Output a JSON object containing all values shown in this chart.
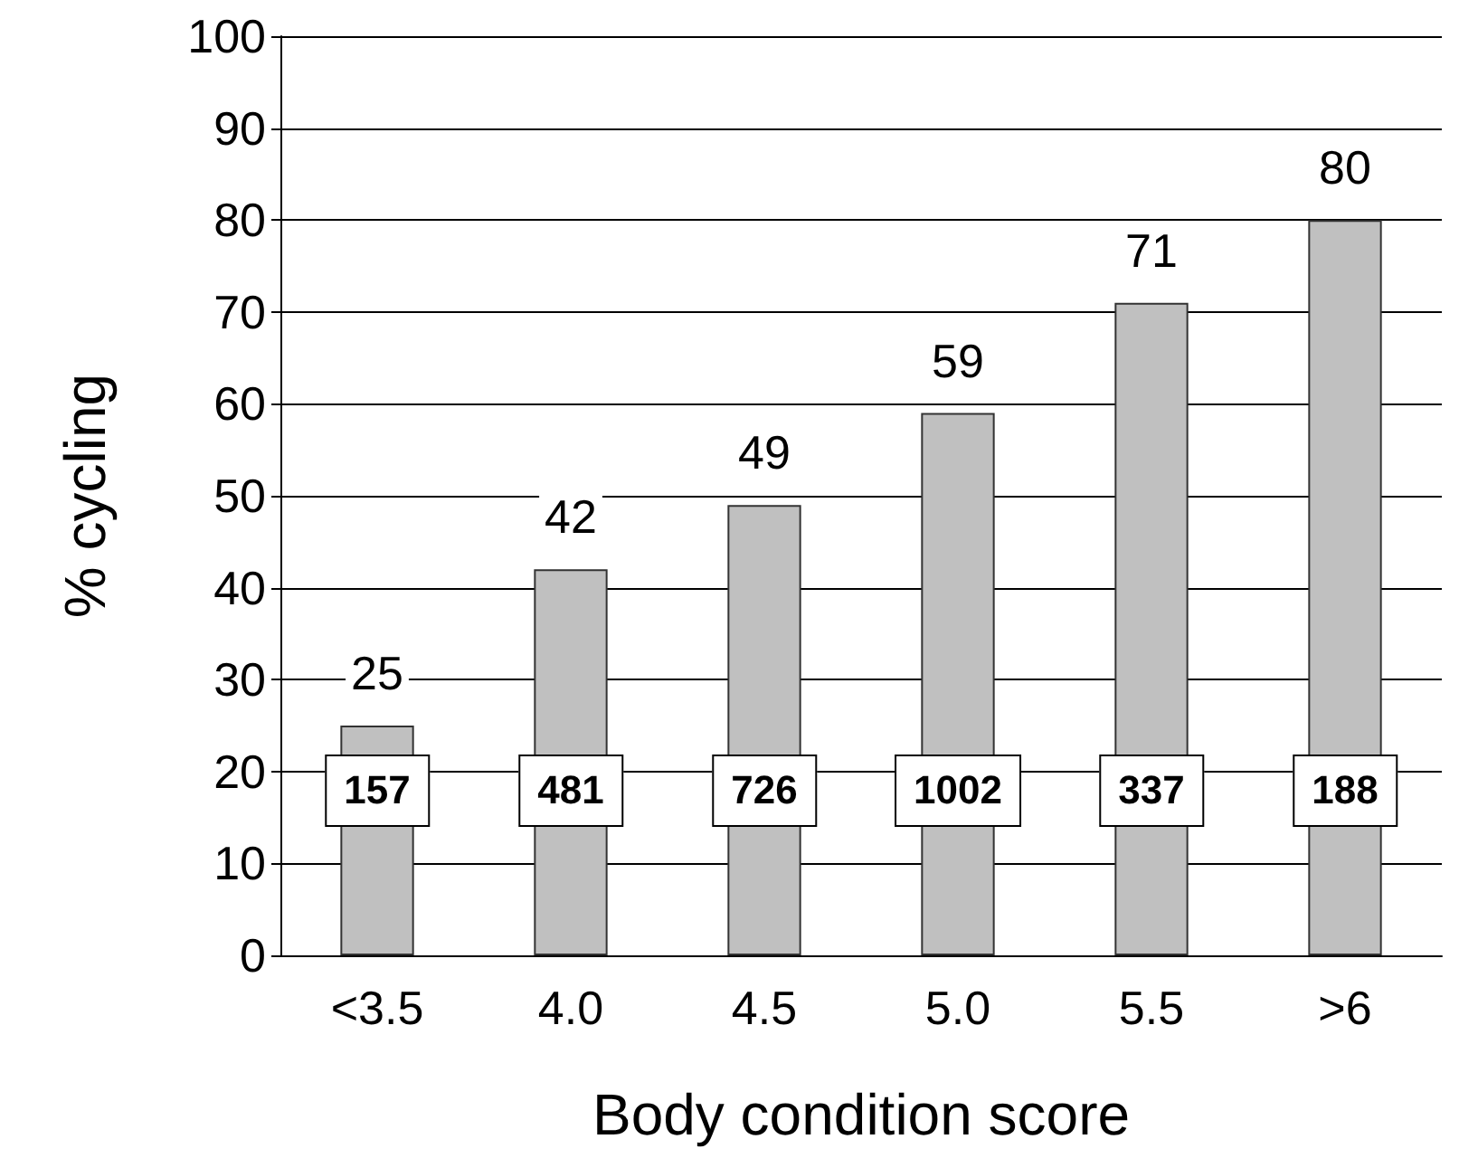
{
  "chart_data": {
    "type": "bar",
    "xlabel": "Body condition score",
    "ylabel": "% cycling",
    "categories": [
      "<3.5",
      "4.0",
      "4.5",
      "5.0",
      "5.5",
      ">6"
    ],
    "values": [
      25,
      42,
      49,
      59,
      71,
      80
    ],
    "color": "#c0c0c0",
    "ylim": [
      0,
      100
    ],
    "yticks": [
      0,
      10,
      20,
      30,
      40,
      50,
      60,
      70,
      80,
      90,
      100
    ],
    "grid": "y",
    "data_labels": true,
    "annotations": [
      "157",
      "481",
      "726",
      "1002",
      "337",
      "188"
    ]
  }
}
